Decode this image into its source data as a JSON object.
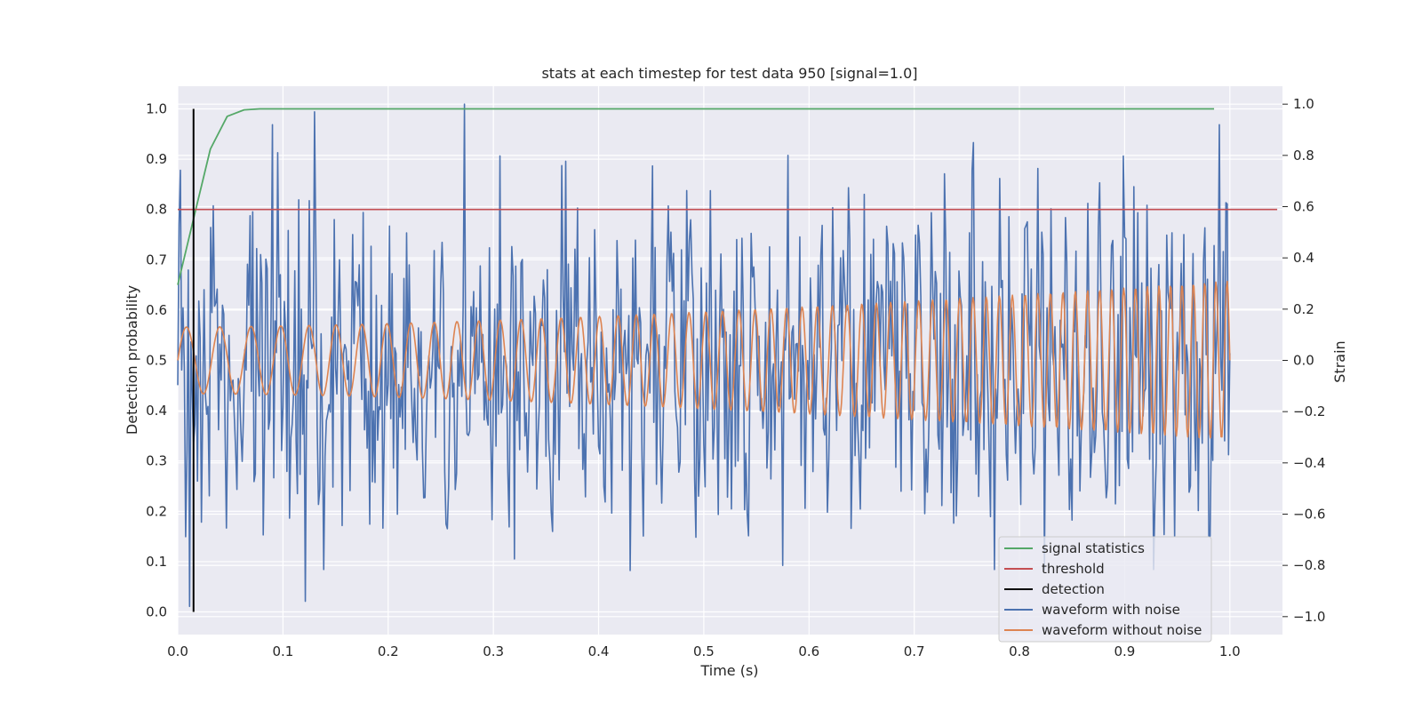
{
  "chart_data": {
    "type": "line",
    "title": "stats at each timestep for test data 950 [signal=1.0]",
    "xlabel": "Time (s)",
    "ylabel_left": "Detection probability",
    "ylabel_right": "Strain",
    "xlim": [
      0.0,
      1.05
    ],
    "ylim_left": [
      -0.045,
      1.045
    ],
    "ylim_right": [
      -1.07,
      1.07
    ],
    "x_ticks": [
      "0.0",
      "0.1",
      "0.2",
      "0.3",
      "0.4",
      "0.5",
      "0.6",
      "0.7",
      "0.8",
      "0.9",
      "1.0"
    ],
    "y_left_ticks": [
      "0.0",
      "0.1",
      "0.2",
      "0.3",
      "0.4",
      "0.5",
      "0.6",
      "0.7",
      "0.8",
      "0.9",
      "1.0"
    ],
    "y_right_ticks": [
      "−1.0",
      "−0.8",
      "−0.6",
      "−0.4",
      "−0.2",
      "0.0",
      "0.2",
      "0.4",
      "0.6",
      "0.8",
      "1.0"
    ],
    "grid": true,
    "legend_position": "bottom-right",
    "series": [
      {
        "name": "signal statistics",
        "color": "#55a868",
        "axis": "left",
        "x": [
          0.0,
          0.016,
          0.031,
          0.047,
          0.063,
          0.078,
          0.1,
          0.2,
          0.4,
          0.6,
          0.8,
          0.985
        ],
        "y": [
          0.65,
          0.79,
          0.92,
          0.985,
          0.998,
          1.0,
          1.0,
          1.0,
          1.0,
          1.0,
          1.0,
          1.0
        ]
      },
      {
        "name": "threshold",
        "color": "#c44e52",
        "axis": "left",
        "x": [
          0.0,
          1.045
        ],
        "y": [
          0.8,
          0.8
        ]
      },
      {
        "name": "detection",
        "color": "#000000",
        "axis": "left",
        "x": [
          0.015,
          0.015
        ],
        "y": [
          0.0,
          1.0
        ]
      },
      {
        "name": "waveform with noise",
        "color": "#4c72b0",
        "axis": "right",
        "samples": 800,
        "x_range": [
          0.0,
          1.0
        ],
        "amplitude_range": [
          -0.96,
          1.0
        ],
        "peaks": [
          {
            "x": 0.273,
            "y": 1.0
          },
          {
            "x": 0.13,
            "y": 0.97
          },
          {
            "x": 0.99,
            "y": 0.92
          },
          {
            "x": 0.09,
            "y": 0.92
          },
          {
            "x": 0.121,
            "y": -0.94
          },
          {
            "x": 0.011,
            "y": -0.96
          },
          {
            "x": 0.58,
            "y": 0.8
          },
          {
            "x": 0.575,
            "y": -0.8
          },
          {
            "x": 0.43,
            "y": -0.82
          }
        ]
      },
      {
        "name": "waveform without noise",
        "color": "#dd8452",
        "axis": "right",
        "samples": 1200,
        "x_range": [
          0.0,
          1.0
        ],
        "amplitude_start": 0.13,
        "amplitude_end": 0.31,
        "cycles_start": 30,
        "cycles_end": 95
      }
    ]
  }
}
